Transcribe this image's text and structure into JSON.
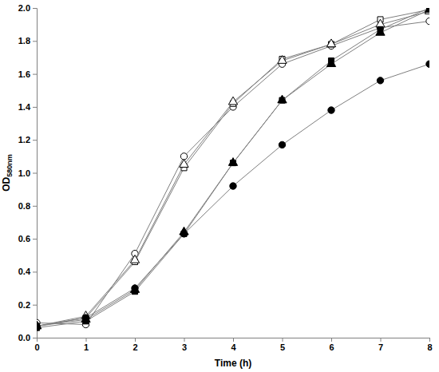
{
  "chart_data": {
    "type": "line",
    "x_label": "Time (h)",
    "y_label": "OD580nm",
    "x": [
      0,
      1,
      2,
      3,
      4,
      5,
      6,
      7,
      8
    ],
    "xlim": [
      0,
      8
    ],
    "xticks": [
      0,
      1,
      2,
      3,
      4,
      5,
      6,
      7,
      8
    ],
    "ylim": [
      0,
      2
    ],
    "yticks": [
      {
        "value": 0,
        "label": "0.0"
      },
      0.2,
      0.4,
      0.6,
      0.8,
      {
        "value": 1,
        "label": "1.0"
      },
      1.2,
      1.4,
      1.6,
      1.8,
      {
        "value": 2,
        "label": "2.0"
      }
    ],
    "grid": false,
    "series": [
      {
        "color": "#000000",
        "marker": "open-circle",
        "values": [
          0.09,
          0.08,
          0.51,
          1.1,
          1.4,
          1.66,
          1.77,
          1.88,
          1.92
        ]
      },
      {
        "color": "#000000",
        "marker": "open-square",
        "values": [
          0.07,
          0.12,
          0.46,
          1.03,
          1.42,
          1.69,
          1.78,
          1.93,
          1.99
        ]
      },
      {
        "color": "#000000",
        "marker": "open-triangle",
        "values": [
          0.07,
          0.13,
          0.47,
          1.05,
          1.43,
          1.68,
          1.78,
          1.9,
          1.98
        ]
      },
      {
        "color": "#000000",
        "marker": "filled-square",
        "values": [
          0.06,
          0.1,
          0.28,
          0.63,
          1.06,
          1.44,
          1.68,
          1.87,
          2.0
        ]
      },
      {
        "color": "#000000",
        "marker": "filled-triangle",
        "values": [
          0.07,
          0.11,
          0.29,
          0.64,
          1.06,
          1.44,
          1.66,
          1.85,
          1.99
        ]
      },
      {
        "color": "#000000",
        "marker": "filled-circle",
        "values": [
          0.07,
          0.12,
          0.3,
          0.63,
          0.92,
          1.17,
          1.38,
          1.56,
          1.66
        ]
      }
    ]
  }
}
